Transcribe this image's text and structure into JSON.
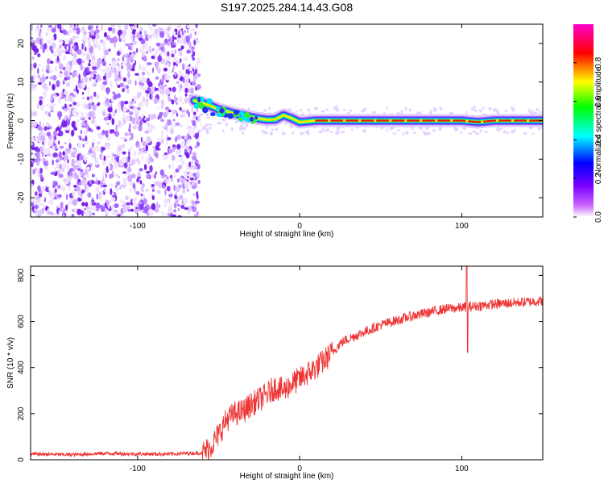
{
  "title": "S197.2025.284.14.43.G08",
  "chart_data": [
    {
      "type": "heatmap",
      "name": "spectrogram",
      "xlabel": "Height of straight line (km)",
      "ylabel": "Frequency (Hz)",
      "xlim": [
        -166,
        150
      ],
      "ylim": [
        -25,
        25
      ],
      "xticks": [
        -100,
        0,
        100
      ],
      "yticks": [
        -20,
        -10,
        0,
        10,
        20
      ],
      "ridge": {
        "x": [
          -65,
          -60,
          -55,
          -50,
          -45,
          -40,
          -35,
          -30,
          -25,
          -20,
          -15,
          -10,
          -5,
          0,
          10,
          20,
          40,
          60,
          80,
          100,
          110,
          120,
          130,
          140,
          150
        ],
        "y": [
          5.2,
          4.6,
          3.8,
          2.9,
          2.4,
          1.8,
          1.4,
          0.9,
          0.5,
          0.2,
          0.3,
          1.4,
          0.6,
          -0.4,
          0.0,
          0.0,
          0.0,
          0.0,
          0.0,
          0.0,
          -0.4,
          0.0,
          0.0,
          0.0,
          0.0
        ]
      },
      "noise_region_x": [
        -166,
        -62
      ],
      "colorbar": {
        "label": "Normalized spectral amplitude",
        "range": [
          0,
          1
        ],
        "ticks": [
          "0.0",
          "0.2",
          "0.4",
          "0.6",
          "0.8"
        ],
        "colors": [
          "#ffffff",
          "#cc66ff",
          "#0000ff",
          "#00ffff",
          "#00ff00",
          "#ffff00",
          "#ff0000",
          "#ff00cc"
        ]
      }
    },
    {
      "type": "line",
      "name": "snr",
      "xlabel": "Height of straight line (km)",
      "ylabel": "SNR (10 * v/v)",
      "xlim": [
        -166,
        150
      ],
      "ylim": [
        0,
        840
      ],
      "xticks": [
        -100,
        0,
        100
      ],
      "yticks": [
        0,
        200,
        400,
        600,
        800
      ],
      "color": "#ee3333",
      "series": [
        {
          "name": "SNR",
          "x": [
            -166,
            -140,
            -120,
            -100,
            -80,
            -60,
            -55,
            -50,
            -45,
            -40,
            -35,
            -30,
            -25,
            -20,
            -15,
            -10,
            -5,
            0,
            5,
            10,
            15,
            20,
            25,
            30,
            40,
            50,
            60,
            70,
            80,
            90,
            100,
            110,
            120,
            130,
            140,
            150
          ],
          "y": [
            25,
            22,
            28,
            25,
            25,
            30,
            55,
            110,
            175,
            200,
            210,
            240,
            260,
            285,
            315,
            300,
            330,
            350,
            375,
            400,
            430,
            465,
            505,
            525,
            555,
            585,
            605,
            625,
            640,
            655,
            660,
            668,
            675,
            680,
            685,
            690
          ]
        }
      ],
      "annotations": [
        {
          "x": 103,
          "y": 840,
          "note": "spike"
        },
        {
          "x": 103,
          "y": 465,
          "note": "dip"
        }
      ]
    }
  ]
}
